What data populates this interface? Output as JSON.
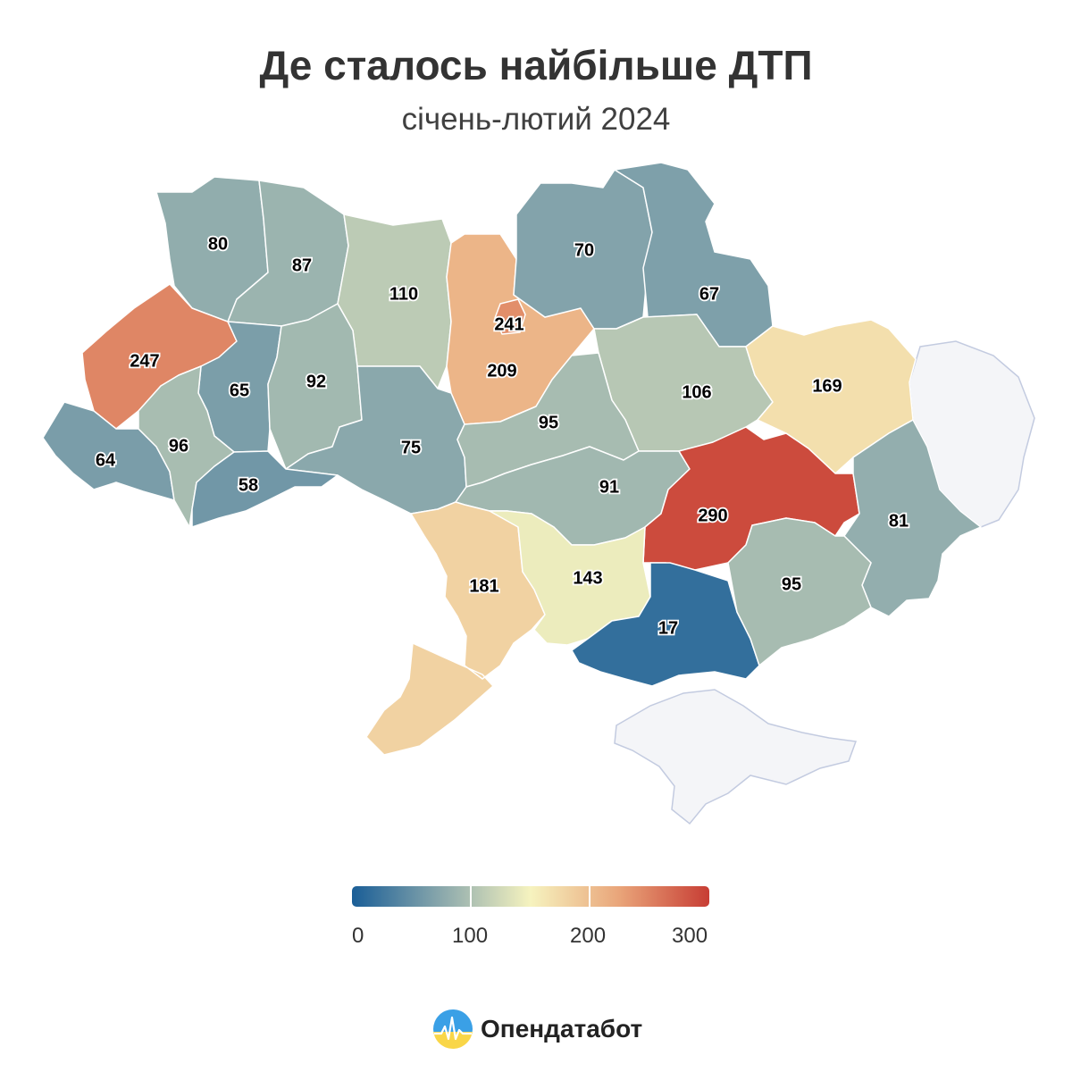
{
  "title": "Де сталось найбільше ДТП",
  "subtitle": "січень-лютий 2024",
  "chart_data": {
    "type": "choropleth",
    "regions": [
      {
        "value": 80
      },
      {
        "value": 87
      },
      {
        "value": 110
      },
      {
        "value": 241
      },
      {
        "value": 70
      },
      {
        "value": 67
      },
      {
        "value": 247
      },
      {
        "value": 65
      },
      {
        "value": 92
      },
      {
        "value": 209
      },
      {
        "value": 106
      },
      {
        "value": 169
      },
      {
        "value": 64
      },
      {
        "value": 96
      },
      {
        "value": 75
      },
      {
        "value": 95
      },
      {
        "value": 58
      },
      {
        "value": 91
      },
      {
        "value": 290
      },
      {
        "value": 81
      },
      {
        "value": 181
      },
      {
        "value": 143
      },
      {
        "value": 17
      },
      {
        "value": 95
      }
    ],
    "no_data_color": "#f4f5f8",
    "color_scale": {
      "min": 0,
      "max": 300,
      "stops": [
        "#1a5e97",
        "#8aa8ac",
        "#f6f3bf",
        "#e9a479",
        "#c73d34"
      ]
    }
  },
  "legend": {
    "ticks": [
      "0",
      "100",
      "200",
      "300"
    ]
  },
  "brand": {
    "name": "Опендатабот",
    "colors": {
      "blue": "#3aa0e6",
      "yellow": "#f9d648"
    }
  }
}
